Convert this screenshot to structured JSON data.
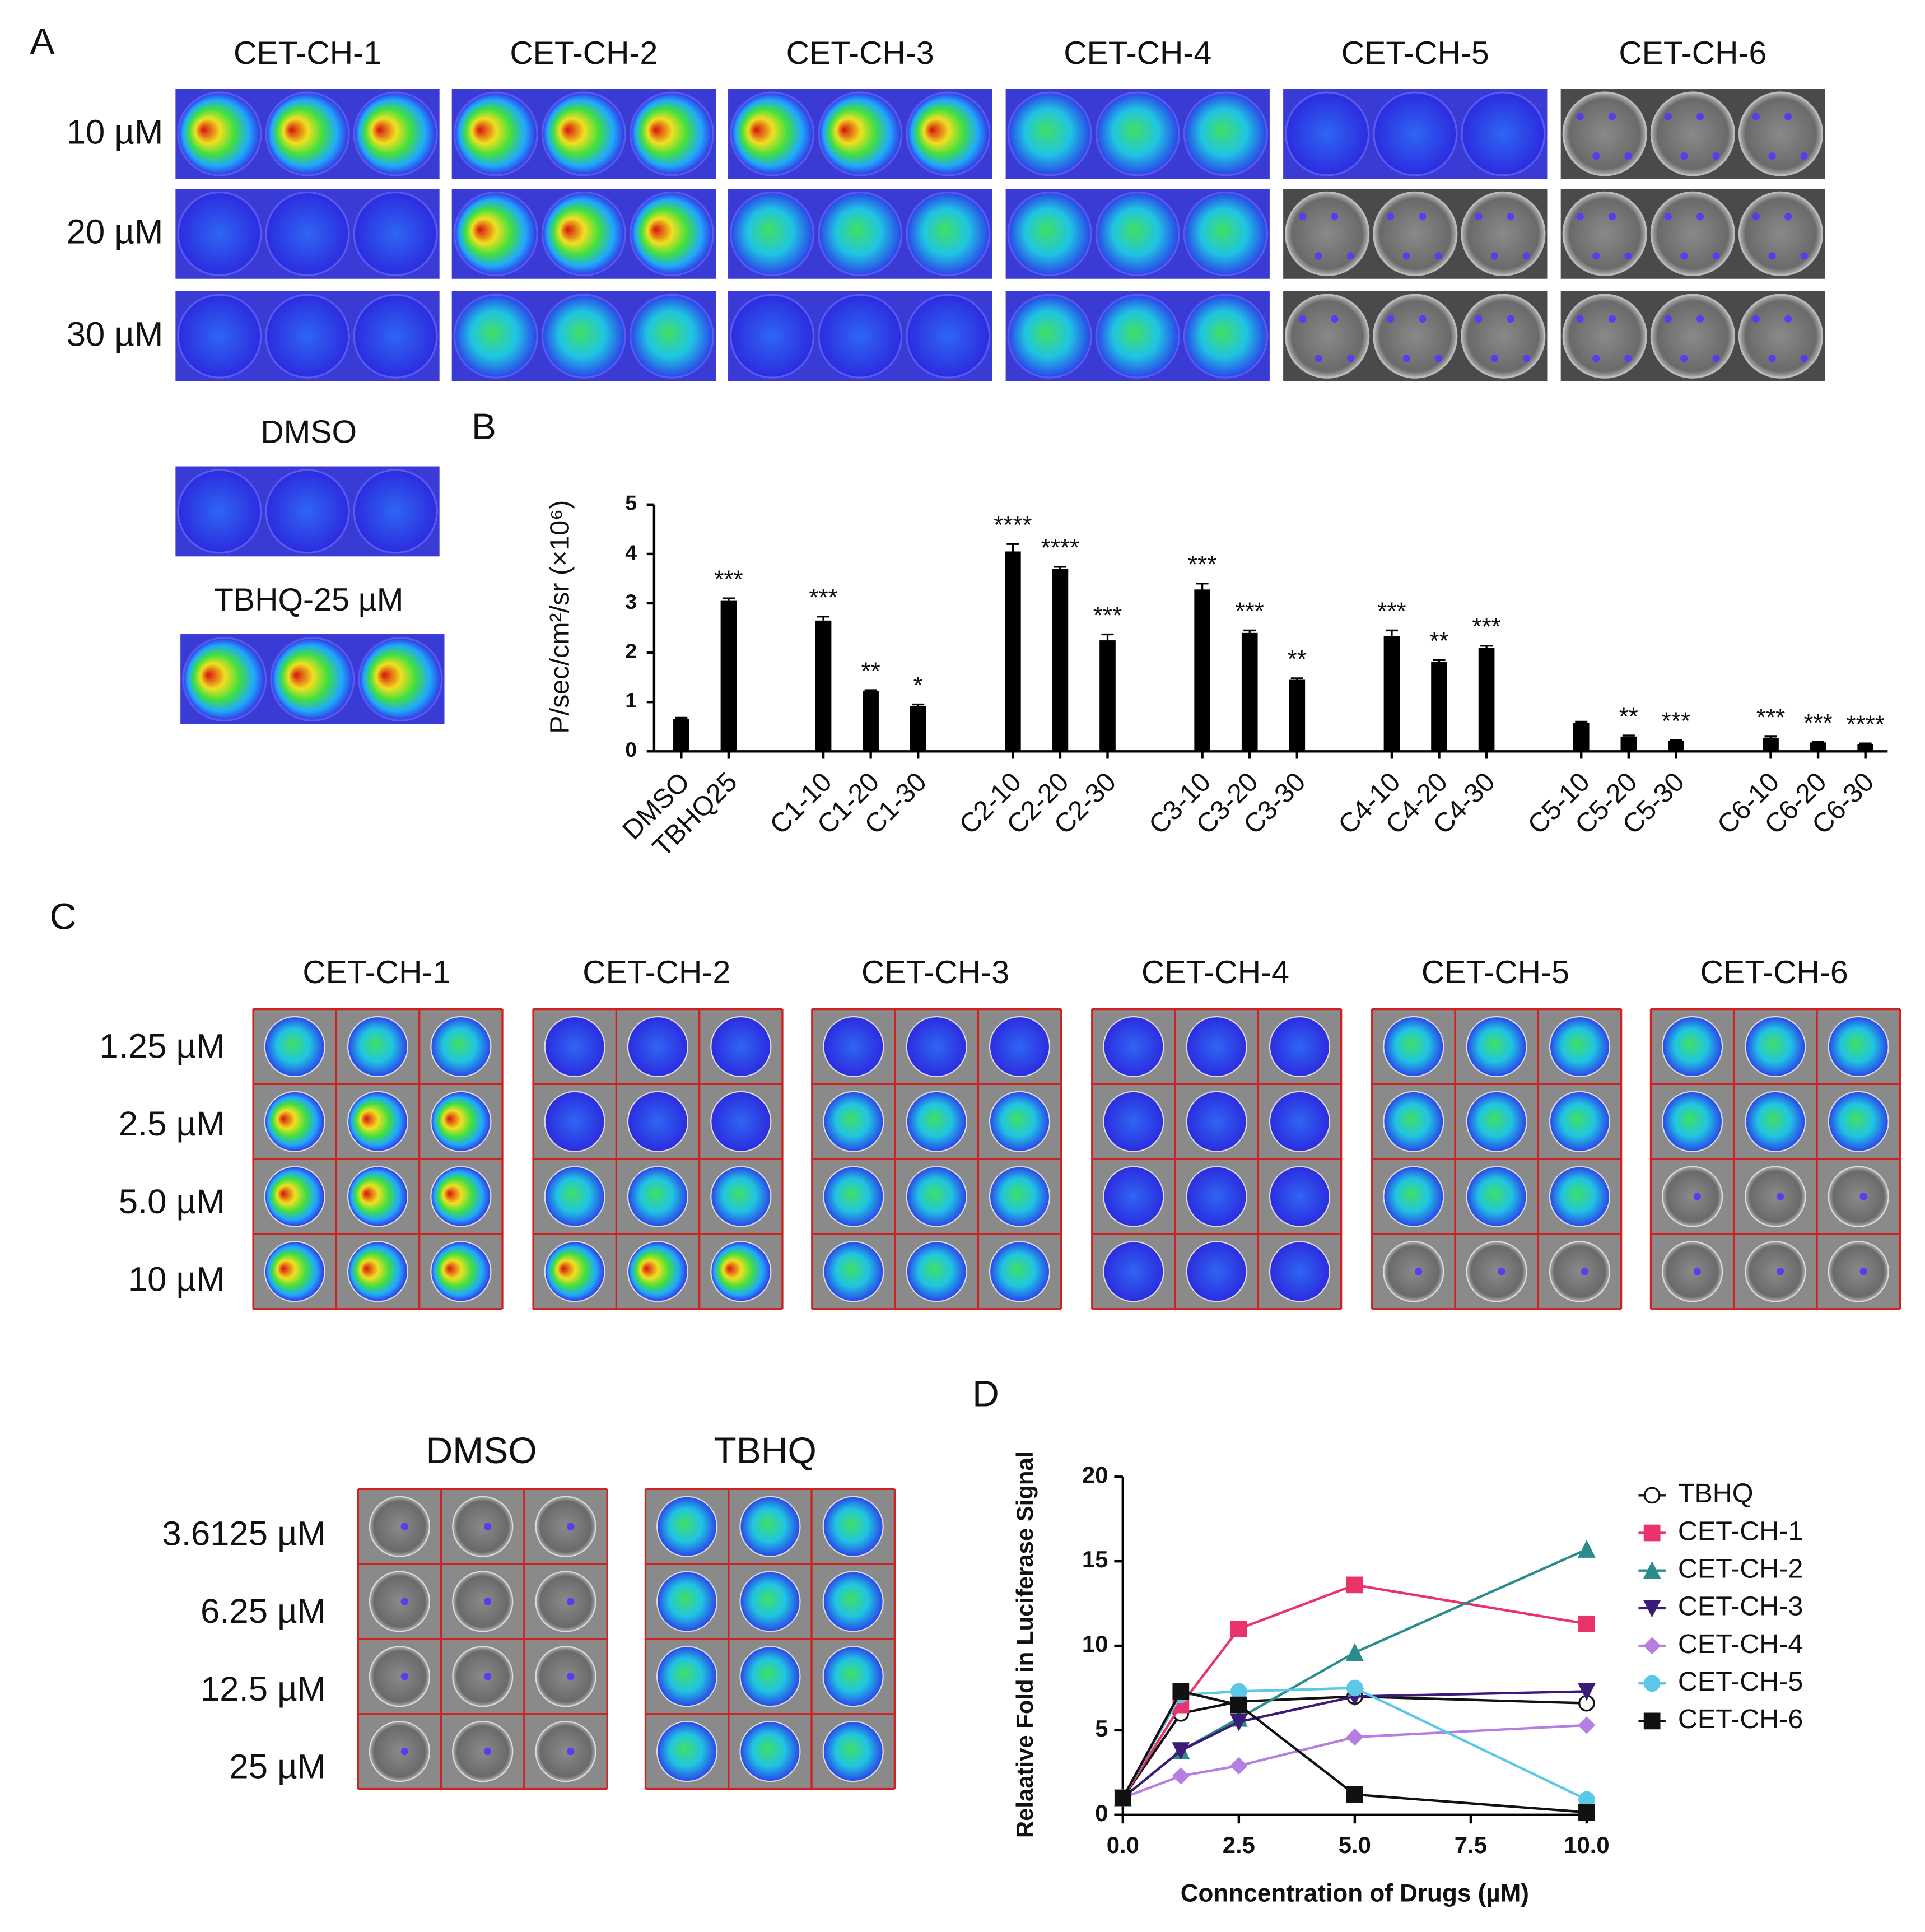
{
  "panel_a": {
    "label": "A",
    "columns": [
      "CET-CH-1",
      "CET-CH-2",
      "CET-CH-3",
      "CET-CH-4",
      "CET-CH-5",
      "CET-CH-6"
    ],
    "rows": [
      "10 µM",
      "20 µM",
      "30 µM"
    ],
    "controls": [
      "DMSO",
      "TBHQ-25 µM"
    ]
  },
  "panel_b": {
    "label": "B"
  },
  "panel_c": {
    "label": "C",
    "columns": [
      "CET-CH-1",
      "CET-CH-2",
      "CET-CH-3",
      "CET-CH-4",
      "CET-CH-5",
      "CET-CH-6"
    ],
    "rows": [
      "1.25 µM",
      "2.5 µM",
      "5.0 µM",
      "10 µM"
    ],
    "control_columns": [
      "DMSO",
      "TBHQ"
    ],
    "control_rows": [
      "3.6125 µM",
      "6.25 µM",
      "12.5 µM",
      "25 µM"
    ]
  },
  "panel_d": {
    "label": "D"
  },
  "chart_data": [
    {
      "type": "bar",
      "y_label": "P/sec/cm²/sr (×10⁶)",
      "categories": [
        "DMSO",
        "TBHQ25",
        "C1-10",
        "C1-20",
        "C1-30",
        "C2-10",
        "C2-20",
        "C2-30",
        "C3-10",
        "C3-20",
        "C3-30",
        "C4-10",
        "C4-20",
        "C4-30",
        "C5-10",
        "C5-20",
        "C5-30",
        "C6-10",
        "C6-20",
        "C6-30"
      ],
      "values": [
        0.65,
        3.05,
        2.65,
        1.22,
        0.92,
        4.05,
        3.7,
        2.25,
        3.28,
        2.4,
        1.45,
        2.33,
        1.82,
        2.1,
        0.58,
        0.3,
        0.22,
        0.27,
        0.18,
        0.15
      ],
      "errors": [
        0.03,
        0.05,
        0.08,
        0.02,
        0.03,
        0.15,
        0.04,
        0.12,
        0.12,
        0.05,
        0.03,
        0.12,
        0.03,
        0.04,
        0.02,
        0.02,
        0.01,
        0.03,
        0.01,
        0.01
      ],
      "annotations": [
        null,
        "***",
        "***",
        "**",
        "*",
        "****",
        "****",
        "***",
        "***",
        "***",
        "**",
        "***",
        "**",
        "***",
        null,
        "**",
        "***",
        "***",
        "***",
        "****"
      ],
      "color": "#000000",
      "ylim": [
        0,
        5
      ],
      "yticks": [
        0,
        1,
        2,
        3,
        4,
        5
      ]
    },
    {
      "type": "line",
      "x_label": "Conncentration of Drugs (µM)",
      "y_label": "Relaative Fold in Luciferase Signal",
      "x": [
        0,
        1.25,
        2.5,
        5,
        10
      ],
      "series": [
        {
          "name": "TBHQ",
          "color": "#111111",
          "marker": "circle-open",
          "values": [
            1,
            6,
            6.7,
            7,
            6.6
          ]
        },
        {
          "name": "CET-CH-1",
          "color": "#e8336b",
          "marker": "square",
          "values": [
            1,
            6.5,
            11,
            13.6,
            11.3
          ]
        },
        {
          "name": "CET-CH-2",
          "color": "#2a8c8c",
          "marker": "triangle",
          "values": [
            1,
            3.8,
            5.7,
            9.6,
            15.7
          ]
        },
        {
          "name": "CET-CH-3",
          "color": "#3b1a78",
          "marker": "triangle-down",
          "values": [
            1,
            3.8,
            5.5,
            7,
            7.3
          ]
        },
        {
          "name": "CET-CH-4",
          "color": "#b57ee0",
          "marker": "diamond",
          "values": [
            1,
            2.3,
            2.9,
            4.6,
            5.3
          ]
        },
        {
          "name": "CET-CH-5",
          "color": "#5bc8e8",
          "marker": "circle",
          "values": [
            1,
            7.1,
            7.3,
            7.5,
            0.9
          ]
        },
        {
          "name": "CET-CH-6",
          "color": "#111111",
          "marker": "square",
          "values": [
            1,
            7.3,
            6.5,
            1.2,
            0.15
          ]
        }
      ],
      "xlim": [
        0,
        10
      ],
      "xticks": [
        {
          "value": 0,
          "label": "0.0"
        },
        {
          "value": 2.5,
          "label": "2.5"
        },
        {
          "value": 5,
          "label": "5.0"
        },
        {
          "value": 7.5,
          "label": "7.5"
        },
        {
          "value": 10,
          "label": "10.0"
        }
      ],
      "ylim": [
        0,
        20
      ],
      "yticks": [
        0,
        5,
        10,
        15,
        20
      ]
    }
  ]
}
